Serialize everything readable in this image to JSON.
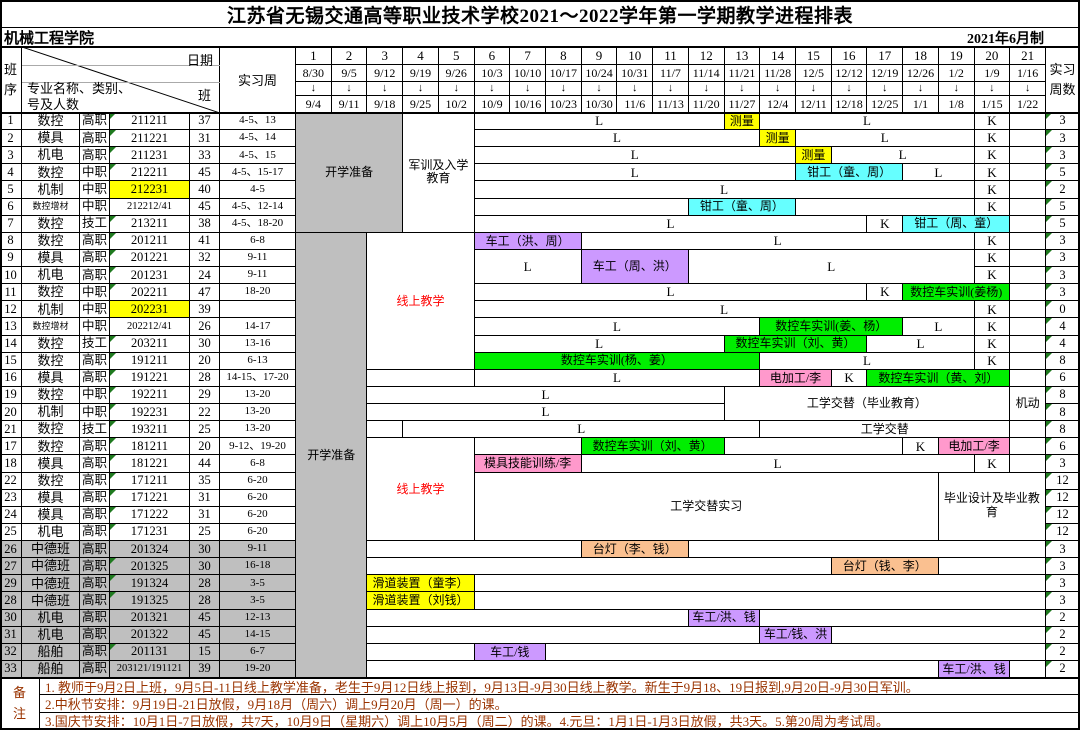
{
  "title": "江苏省无锡交通高等职业技术学校2021～2022学年第一学期教学进程排表",
  "dept": "机械工程学院",
  "made": "2021年6月制",
  "header": {
    "seq": "班序",
    "diag_top": "日期",
    "diag_mid": "班",
    "diag_bottom1": "专业名称、类别、",
    "diag_bottom2": "号及人数",
    "practice": "实习周",
    "intern": "实习周数",
    "arrow": "↓"
  },
  "remark_label": "备注",
  "colors": {
    "yellow": "#ffff00",
    "cyan": "#66ffff",
    "purple": "#cc99ff",
    "green": "#00ee00",
    "pink": "#ff99cc",
    "orange": "#fac090",
    "gray": "#bfbfbf",
    "red_text": "#ff0000",
    "note_text": "#993300",
    "triangle": "#1f7a1f"
  },
  "weeks": [
    {
      "no": "1",
      "from": "8/30",
      "to": "9/4"
    },
    {
      "no": "2",
      "from": "9/5",
      "to": "9/11"
    },
    {
      "no": "3",
      "from": "9/12",
      "to": "9/18"
    },
    {
      "no": "4",
      "from": "9/19",
      "to": "9/25"
    },
    {
      "no": "5",
      "from": "9/26",
      "to": "10/2"
    },
    {
      "no": "6",
      "from": "10/3",
      "to": "10/9"
    },
    {
      "no": "7",
      "from": "10/10",
      "to": "10/16"
    },
    {
      "no": "8",
      "from": "10/17",
      "to": "10/23"
    },
    {
      "no": "9",
      "from": "10/24",
      "to": "10/30"
    },
    {
      "no": "10",
      "from": "10/31",
      "to": "11/6"
    },
    {
      "no": "11",
      "from": "11/7",
      "to": "11/13"
    },
    {
      "no": "12",
      "from": "11/14",
      "to": "11/20"
    },
    {
      "no": "13",
      "from": "11/21",
      "to": "11/27"
    },
    {
      "no": "14",
      "from": "11/28",
      "to": "12/4"
    },
    {
      "no": "15",
      "from": "12/5",
      "to": "12/11"
    },
    {
      "no": "16",
      "from": "12/12",
      "to": "12/18"
    },
    {
      "no": "17",
      "from": "12/19",
      "to": "12/25"
    },
    {
      "no": "18",
      "from": "12/26",
      "to": "1/1"
    },
    {
      "no": "19",
      "from": "1/2",
      "to": "1/8"
    },
    {
      "no": "20",
      "from": "1/9",
      "to": "1/15"
    },
    {
      "no": "21",
      "from": "1/16",
      "to": "1/22"
    }
  ],
  "rows": [
    {
      "seq": "1",
      "major": "数控",
      "lvl": "高职",
      "code": "211211",
      "n": "37",
      "wk": "4-5、13",
      "intern": "3",
      "tri": true
    },
    {
      "seq": "2",
      "major": "模具",
      "lvl": "高职",
      "code": "211221",
      "n": "31",
      "wk": "4-5、14",
      "intern": "3",
      "tri": true
    },
    {
      "seq": "3",
      "major": "机电",
      "lvl": "高职",
      "code": "211231",
      "n": "33",
      "wk": "4-5、15",
      "intern": "3",
      "tri": true
    },
    {
      "seq": "4",
      "major": "数控",
      "lvl": "中职",
      "code": "212211",
      "n": "45",
      "wk": "4-5、15-17",
      "intern": "5",
      "tri": true
    },
    {
      "seq": "5",
      "major": "机制",
      "lvl": "中职",
      "code": "212231",
      "n": "40",
      "wk": "4-5",
      "intern": "2",
      "codeBg": "yellow"
    },
    {
      "seq": "6",
      "major": "数控增材",
      "lvl": "中职",
      "code": "212212/41",
      "n": "45",
      "wk": "4-5、12-14",
      "intern": "5",
      "small": true
    },
    {
      "seq": "7",
      "major": "数控",
      "lvl": "技工",
      "code": "213211",
      "n": "38",
      "wk": "4-5、18-20",
      "intern": "5",
      "tri": true
    },
    {
      "seq": "8",
      "major": "数控",
      "lvl": "高职",
      "code": "201211",
      "n": "41",
      "wk": "6-8",
      "intern": "3",
      "tri": true
    },
    {
      "seq": "9",
      "major": "模具",
      "lvl": "高职",
      "code": "201221",
      "n": "32",
      "wk": "9-11",
      "intern": "3",
      "tri": true
    },
    {
      "seq": "10",
      "major": "机电",
      "lvl": "高职",
      "code": "201231",
      "n": "24",
      "wk": "9-11",
      "intern": "3",
      "tri": true
    },
    {
      "seq": "11",
      "major": "数控",
      "lvl": "中职",
      "code": "202211",
      "n": "47",
      "wk": "18-20",
      "intern": "3",
      "tri": true
    },
    {
      "seq": "12",
      "major": "机制",
      "lvl": "中职",
      "code": "202231",
      "n": "39",
      "wk": "",
      "intern": "0",
      "codeBg": "yellow"
    },
    {
      "seq": "13",
      "major": "数控增材",
      "lvl": "中职",
      "code": "202212/41",
      "n": "26",
      "wk": "14-17",
      "intern": "4",
      "small": true
    },
    {
      "seq": "14",
      "major": "数控",
      "lvl": "技工",
      "code": "203211",
      "n": "30",
      "wk": "13-16",
      "intern": "4",
      "tri": true
    },
    {
      "seq": "15",
      "major": "数控",
      "lvl": "高职",
      "code": "191211",
      "n": "20",
      "wk": "6-13",
      "intern": "8",
      "tri": true
    },
    {
      "seq": "16",
      "major": "模具",
      "lvl": "高职",
      "code": "191221",
      "n": "28",
      "wk": "14-15、17-20",
      "intern": "6",
      "tri": true
    },
    {
      "seq": "19",
      "major": "数控",
      "lvl": "中职",
      "code": "192211",
      "n": "29",
      "wk": "13-20",
      "intern": "8",
      "tri": true
    },
    {
      "seq": "20",
      "major": "机制",
      "lvl": "中职",
      "code": "192231",
      "n": "22",
      "wk": "13-20",
      "intern": "8",
      "tri": true
    },
    {
      "seq": "21",
      "major": "数控",
      "lvl": "技工",
      "code": "193211",
      "n": "25",
      "wk": "13-20",
      "intern": "8",
      "tri": true
    },
    {
      "seq": "17",
      "major": "数控",
      "lvl": "高职",
      "code": "181211",
      "n": "20",
      "wk": "9-12、19-20",
      "intern": "6",
      "tri": true
    },
    {
      "seq": "18",
      "major": "模具",
      "lvl": "高职",
      "code": "181221",
      "n": "44",
      "wk": "6-8",
      "intern": "3",
      "tri": true
    },
    {
      "seq": "22",
      "major": "数控",
      "lvl": "高职",
      "code": "171211",
      "n": "35",
      "wk": "6-20",
      "intern": "12",
      "tri": true
    },
    {
      "seq": "23",
      "major": "模具",
      "lvl": "高职",
      "code": "171221",
      "n": "31",
      "wk": "6-20",
      "intern": "12",
      "tri": true
    },
    {
      "seq": "24",
      "major": "模具",
      "lvl": "高职",
      "code": "171222",
      "n": "31",
      "wk": "6-20",
      "intern": "12",
      "tri": true
    },
    {
      "seq": "25",
      "major": "机电",
      "lvl": "高职",
      "code": "171231",
      "n": "25",
      "wk": "6-20",
      "intern": "12",
      "tri": true
    },
    {
      "seq": "26",
      "major": "中德班",
      "lvl": "高职",
      "code": "201324",
      "n": "30",
      "wk": "9-11",
      "intern": "3",
      "gray": true
    },
    {
      "seq": "27",
      "major": "中德班",
      "lvl": "高职",
      "code": "201325",
      "n": "30",
      "wk": "16-18",
      "intern": "3",
      "gray": true,
      "tri": true
    },
    {
      "seq": "29",
      "major": "中德班",
      "lvl": "高职",
      "code": "191324",
      "n": "28",
      "wk": "3-5",
      "intern": "3",
      "gray": true,
      "tri": true
    },
    {
      "seq": "28",
      "major": "中德班",
      "lvl": "高职",
      "code": "191325",
      "n": "28",
      "wk": "3-5",
      "intern": "3",
      "gray": true,
      "tri": true
    },
    {
      "seq": "30",
      "major": "机电",
      "lvl": "高职",
      "code": "201321",
      "n": "45",
      "wk": "12-13",
      "intern": "2",
      "gray": true
    },
    {
      "seq": "31",
      "major": "机电",
      "lvl": "高职",
      "code": "201322",
      "n": "45",
      "wk": "14-15",
      "intern": "2",
      "gray": true
    },
    {
      "seq": "32",
      "major": "船舶",
      "lvl": "高职",
      "code": "201131",
      "n": "15",
      "wk": "6-7",
      "intern": "2",
      "gray": true,
      "tri": true
    },
    {
      "seq": "33",
      "major": "船舶",
      "lvl": "高职",
      "code": "203121/191121",
      "n": "39",
      "wk": "19-20",
      "intern": "2",
      "gray": true
    }
  ],
  "blocks": [
    {
      "r": 0,
      "rs": 7,
      "w1": 1,
      "w2": 3,
      "t": "开学准备",
      "bg": "gray"
    },
    {
      "r": 0,
      "rs": 7,
      "w1": 4,
      "w2": 5,
      "t": "军训及入学教育",
      "wrap": true
    },
    {
      "r": 7,
      "rs": 26,
      "w1": 1,
      "w2": 2,
      "t": "开学准备",
      "bg": "gray"
    },
    {
      "r": 7,
      "rs": 8,
      "w1": 3,
      "w2": 5,
      "t": "线上教学",
      "red": true
    },
    {
      "r": 19,
      "rs": 6,
      "w1": 3,
      "w2": 5,
      "t": "线上教学",
      "red": true
    },
    {
      "r": 0,
      "w1": 6,
      "w2": 12,
      "t": "L"
    },
    {
      "r": 0,
      "w1": 13,
      "w2": 13,
      "t": "测量",
      "bg": "yellow"
    },
    {
      "r": 0,
      "w1": 14,
      "w2": 19,
      "t": "L"
    },
    {
      "r": 0,
      "w1": 20,
      "w2": 20,
      "t": "K"
    },
    {
      "r": 0,
      "w1": 21,
      "w2": 21,
      "t": ""
    },
    {
      "r": 1,
      "w1": 6,
      "w2": 13,
      "t": "L"
    },
    {
      "r": 1,
      "w1": 14,
      "w2": 14,
      "t": "测量",
      "bg": "yellow"
    },
    {
      "r": 1,
      "w1": 15,
      "w2": 19,
      "t": "L"
    },
    {
      "r": 1,
      "w1": 20,
      "w2": 20,
      "t": "K"
    },
    {
      "r": 1,
      "w1": 21,
      "w2": 21,
      "t": ""
    },
    {
      "r": 2,
      "w1": 6,
      "w2": 14,
      "t": "L"
    },
    {
      "r": 2,
      "w1": 15,
      "w2": 15,
      "t": "测量",
      "bg": "yellow"
    },
    {
      "r": 2,
      "w1": 16,
      "w2": 19,
      "t": "L"
    },
    {
      "r": 2,
      "w1": 20,
      "w2": 20,
      "t": "K"
    },
    {
      "r": 2,
      "w1": 21,
      "w2": 21,
      "t": ""
    },
    {
      "r": 3,
      "w1": 6,
      "w2": 14,
      "t": "L"
    },
    {
      "r": 3,
      "w1": 15,
      "w2": 17,
      "t": "钳工（童、周）",
      "bg": "cyan"
    },
    {
      "r": 3,
      "w1": 18,
      "w2": 19,
      "t": "L"
    },
    {
      "r": 3,
      "w1": 20,
      "w2": 20,
      "t": "K"
    },
    {
      "r": 3,
      "w1": 21,
      "w2": 21,
      "t": ""
    },
    {
      "r": 4,
      "w1": 6,
      "w2": 19,
      "t": "L"
    },
    {
      "r": 4,
      "w1": 20,
      "w2": 20,
      "t": "K"
    },
    {
      "r": 4,
      "w1": 21,
      "w2": 21,
      "t": ""
    },
    {
      "r": 5,
      "w1": 6,
      "w2": 11,
      "t": ""
    },
    {
      "r": 5,
      "w1": 12,
      "w2": 14,
      "t": "钳工（童、周）",
      "bg": "cyan"
    },
    {
      "r": 5,
      "w1": 15,
      "w2": 19,
      "t": ""
    },
    {
      "r": 5,
      "w1": 20,
      "w2": 20,
      "t": "K"
    },
    {
      "r": 5,
      "w1": 21,
      "w2": 21,
      "t": ""
    },
    {
      "r": 6,
      "w1": 6,
      "w2": 16,
      "t": "L"
    },
    {
      "r": 6,
      "w1": 17,
      "w2": 17,
      "t": "K"
    },
    {
      "r": 6,
      "w1": 18,
      "w2": 20,
      "t": "钳工（周、童）",
      "bg": "cyan"
    },
    {
      "r": 6,
      "w1": 21,
      "w2": 21,
      "t": ""
    },
    {
      "r": 7,
      "w1": 6,
      "w2": 8,
      "t": "车工（洪、周）",
      "bg": "purple"
    },
    {
      "r": 7,
      "w1": 9,
      "w2": 19,
      "t": "L"
    },
    {
      "r": 7,
      "w1": 20,
      "w2": 20,
      "t": "K"
    },
    {
      "r": 7,
      "w1": 21,
      "w2": 21,
      "t": ""
    },
    {
      "r": 8,
      "rs": 2,
      "w1": 6,
      "w2": 8,
      "t": "L"
    },
    {
      "r": 8,
      "rs": 2,
      "w1": 9,
      "w2": 11,
      "t": "车工（周、洪）",
      "bg": "purple"
    },
    {
      "r": 8,
      "rs": 2,
      "w1": 12,
      "w2": 19,
      "t": "L"
    },
    {
      "r": 8,
      "w1": 20,
      "w2": 20,
      "t": "K"
    },
    {
      "r": 8,
      "w1": 21,
      "w2": 21,
      "t": ""
    },
    {
      "r": 9,
      "w1": 20,
      "w2": 20,
      "t": "K"
    },
    {
      "r": 9,
      "w1": 21,
      "w2": 21,
      "t": ""
    },
    {
      "r": 10,
      "w1": 6,
      "w2": 16,
      "t": "L"
    },
    {
      "r": 10,
      "w1": 17,
      "w2": 17,
      "t": "K"
    },
    {
      "r": 10,
      "w1": 18,
      "w2": 20,
      "t": "数控车实训(姜杨)",
      "bg": "green"
    },
    {
      "r": 10,
      "w1": 21,
      "w2": 21,
      "t": ""
    },
    {
      "r": 11,
      "w1": 6,
      "w2": 19,
      "t": "L"
    },
    {
      "r": 11,
      "w1": 20,
      "w2": 20,
      "t": "K"
    },
    {
      "r": 11,
      "w1": 21,
      "w2": 21,
      "t": ""
    },
    {
      "r": 12,
      "w1": 6,
      "w2": 13,
      "t": "L"
    },
    {
      "r": 12,
      "w1": 14,
      "w2": 17,
      "t": "数控车实训(姜、杨）",
      "bg": "green"
    },
    {
      "r": 12,
      "w1": 18,
      "w2": 19,
      "t": "L"
    },
    {
      "r": 12,
      "w1": 20,
      "w2": 20,
      "t": "K"
    },
    {
      "r": 12,
      "w1": 21,
      "w2": 21,
      "t": ""
    },
    {
      "r": 13,
      "w1": 6,
      "w2": 12,
      "t": "L"
    },
    {
      "r": 13,
      "w1": 13,
      "w2": 16,
      "t": "数控车实训（刘、黄）",
      "bg": "green"
    },
    {
      "r": 13,
      "w1": 17,
      "w2": 19,
      "t": "L"
    },
    {
      "r": 13,
      "w1": 20,
      "w2": 20,
      "t": "K"
    },
    {
      "r": 13,
      "w1": 21,
      "w2": 21,
      "t": ""
    },
    {
      "r": 14,
      "w1": 6,
      "w2": 13,
      "t": "数控车实训(杨、姜）",
      "bg": "green"
    },
    {
      "r": 14,
      "w1": 14,
      "w2": 19,
      "t": "L"
    },
    {
      "r": 14,
      "w1": 20,
      "w2": 20,
      "t": "K"
    },
    {
      "r": 14,
      "w1": 21,
      "w2": 21,
      "t": ""
    },
    {
      "r": 15,
      "w1": 3,
      "w2": 5,
      "t": ""
    },
    {
      "r": 15,
      "w1": 6,
      "w2": 13,
      "t": "L"
    },
    {
      "r": 15,
      "w1": 14,
      "w2": 15,
      "t": "电加工/李",
      "bg": "pink"
    },
    {
      "r": 15,
      "w1": 16,
      "w2": 16,
      "t": "K"
    },
    {
      "r": 15,
      "w1": 17,
      "w2": 20,
      "t": "数控车实训（黄、刘）",
      "bg": "green"
    },
    {
      "r": 15,
      "w1": 21,
      "w2": 21,
      "t": ""
    },
    {
      "r": 16,
      "w1": 3,
      "w2": 12,
      "t": "L"
    },
    {
      "r": 17,
      "w1": 3,
      "w2": 12,
      "t": "L"
    },
    {
      "r": 16,
      "rs": 2,
      "w1": 13,
      "w2": 20,
      "t": "工学交替（毕业教育）"
    },
    {
      "r": 16,
      "rs": 2,
      "w1": 21,
      "w2": 21,
      "t": "机动"
    },
    {
      "r": 18,
      "w1": 3,
      "w2": 3,
      "t": ""
    },
    {
      "r": 18,
      "w1": 4,
      "w2": 13,
      "t": "L"
    },
    {
      "r": 18,
      "w1": 14,
      "w2": 20,
      "t": "工学交替"
    },
    {
      "r": 18,
      "w1": 21,
      "w2": 21,
      "t": ""
    },
    {
      "r": 19,
      "w1": 6,
      "w2": 8,
      "t": ""
    },
    {
      "r": 19,
      "w1": 9,
      "w2": 12,
      "t": "数控车实训（刘、黄）",
      "bg": "green"
    },
    {
      "r": 19,
      "w1": 13,
      "w2": 17,
      "t": ""
    },
    {
      "r": 19,
      "w1": 18,
      "w2": 18,
      "t": "K"
    },
    {
      "r": 19,
      "w1": 19,
      "w2": 20,
      "t": "电加工/李",
      "bg": "pink"
    },
    {
      "r": 19,
      "w1": 21,
      "w2": 21,
      "t": ""
    },
    {
      "r": 20,
      "w1": 6,
      "w2": 8,
      "t": "模具技能训练/李",
      "bg": "pink"
    },
    {
      "r": 20,
      "w1": 9,
      "w2": 19,
      "t": "L"
    },
    {
      "r": 20,
      "w1": 20,
      "w2": 20,
      "t": "K"
    },
    {
      "r": 20,
      "w1": 21,
      "w2": 21,
      "t": ""
    },
    {
      "r": 21,
      "rs": 4,
      "w1": 6,
      "w2": 18,
      "t": "工学交替实习"
    },
    {
      "r": 21,
      "rs": 4,
      "w1": 19,
      "w2": 21,
      "t": "毕业设计及毕业教育",
      "wrap": true
    },
    {
      "r": 25,
      "w1": 3,
      "w2": 8,
      "t": ""
    },
    {
      "r": 25,
      "w1": 9,
      "w2": 11,
      "t": "台灯（李、钱）",
      "bg": "orange"
    },
    {
      "r": 25,
      "w1": 12,
      "w2": 21,
      "t": ""
    },
    {
      "r": 26,
      "w1": 3,
      "w2": 15,
      "t": ""
    },
    {
      "r": 26,
      "w1": 16,
      "w2": 18,
      "t": "台灯（钱、李）",
      "bg": "orange"
    },
    {
      "r": 26,
      "w1": 19,
      "w2": 21,
      "t": ""
    },
    {
      "r": 27,
      "w1": 3,
      "w2": 5,
      "t": "滑道装置（童李）",
      "bg": "yellow"
    },
    {
      "r": 27,
      "w1": 6,
      "w2": 21,
      "t": ""
    },
    {
      "r": 28,
      "w1": 3,
      "w2": 5,
      "t": "滑道装置（刘钱）",
      "bg": "yellow"
    },
    {
      "r": 28,
      "w1": 6,
      "w2": 21,
      "t": ""
    },
    {
      "r": 29,
      "w1": 3,
      "w2": 11,
      "t": ""
    },
    {
      "r": 29,
      "w1": 12,
      "w2": 13,
      "t": "车工/洪、钱",
      "bg": "purple"
    },
    {
      "r": 29,
      "w1": 14,
      "w2": 21,
      "t": ""
    },
    {
      "r": 30,
      "w1": 3,
      "w2": 13,
      "t": ""
    },
    {
      "r": 30,
      "w1": 14,
      "w2": 15,
      "t": "车工/钱、洪",
      "bg": "purple"
    },
    {
      "r": 30,
      "w1": 16,
      "w2": 21,
      "t": ""
    },
    {
      "r": 31,
      "w1": 3,
      "w2": 5,
      "t": ""
    },
    {
      "r": 31,
      "w1": 6,
      "w2": 7,
      "t": "车工/钱",
      "bg": "purple"
    },
    {
      "r": 31,
      "w1": 8,
      "w2": 21,
      "t": ""
    },
    {
      "r": 32,
      "w1": 3,
      "w2": 18,
      "t": ""
    },
    {
      "r": 32,
      "w1": 19,
      "w2": 20,
      "t": "车工/洪、钱",
      "bg": "purple"
    },
    {
      "r": 32,
      "w1": 21,
      "w2": 21,
      "t": ""
    }
  ],
  "notes": [
    "1. 教师于9月2日上班，9月5日-11日线上教学准备，老生于9月12日线上报到，9月13日-9月30日线上教学。新生于9月18、19日报到,9月20日-9月30日军训。",
    "2.中秋节安排：9月19日-21日放假，9月18月（周六）调上9月20月（周一）的课。",
    "3.国庆节安排：10月1日-7日放假，共7天，10月9日（星期六）调上10月5月（周二）的课。4.元旦：1月1日-1月3日放假，共3天。5.第20周为考试周。"
  ]
}
